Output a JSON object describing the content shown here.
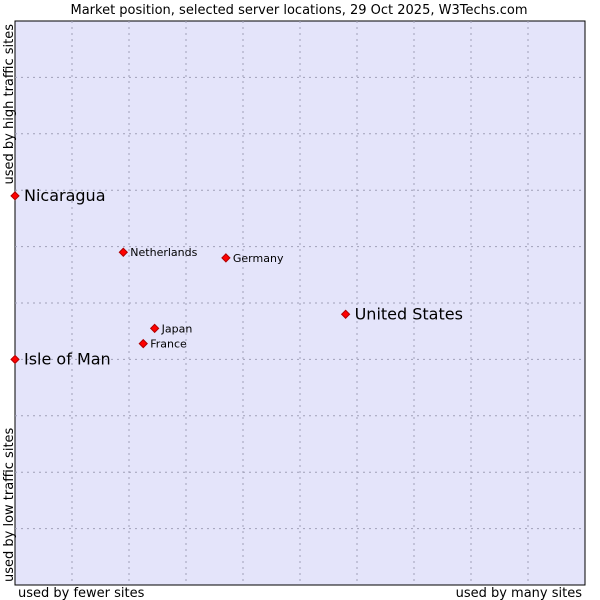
{
  "chart_data": {
    "type": "scatter",
    "title": "Market position, selected server locations, 29 Oct 2025, W3Techs.com",
    "xlabel_left": "used by fewer sites",
    "xlabel_right": "used by many sites",
    "ylabel_bottom": "used by low traffic sites",
    "ylabel_top": "used by high traffic sites",
    "xlim": [
      0,
      10
    ],
    "ylim": [
      0,
      10
    ],
    "grid": true,
    "colors": {
      "plot_background": "#e4e4fa",
      "point": "#ff0000",
      "point_outline": "#b00000",
      "grid": "#a0a0b8",
      "text": "#000000"
    },
    "points": [
      {
        "label": "Nicaragua",
        "x": 0.0,
        "y": 6.9,
        "size": "large"
      },
      {
        "label": "Netherlands",
        "x": 1.9,
        "y": 5.9,
        "size": "small"
      },
      {
        "label": "Germany",
        "x": 3.7,
        "y": 5.8,
        "size": "small"
      },
      {
        "label": "United States",
        "x": 5.8,
        "y": 4.8,
        "size": "large"
      },
      {
        "label": "Japan",
        "x": 2.45,
        "y": 4.55,
        "size": "small"
      },
      {
        "label": "France",
        "x": 2.25,
        "y": 4.28,
        "size": "small"
      },
      {
        "label": "Isle of Man",
        "x": 0.0,
        "y": 4.0,
        "size": "large"
      }
    ]
  }
}
